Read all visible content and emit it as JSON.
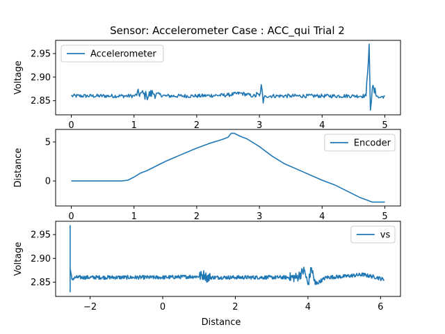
{
  "figure": {
    "title": "Sensor: Accelerometer Case : ACC_qui Trial 2"
  },
  "chart_data": [
    {
      "type": "line",
      "title": "",
      "xlabel": "",
      "ylabel": "Voltage",
      "xlim": [
        -0.25,
        5.25
      ],
      "ylim": [
        2.82,
        2.978
      ],
      "xticks": [
        0,
        1,
        2,
        3,
        4,
        5
      ],
      "yticks": [
        2.85,
        2.9,
        2.95
      ],
      "legend": {
        "placement": "upper-left"
      },
      "series": [
        {
          "name": "Accelerometer",
          "x": [
            0,
            1.0,
            1.1,
            1.2,
            1.3,
            1.5,
            2.0,
            2.5,
            2.7,
            2.9,
            3.0,
            3.03,
            3.06,
            3.1,
            3.5,
            4.0,
            4.5,
            4.7,
            4.75,
            4.77,
            4.8,
            4.9,
            5.0
          ],
          "y": [
            2.86,
            2.86,
            2.866,
            2.86,
            2.866,
            2.86,
            2.86,
            2.862,
            2.866,
            2.86,
            2.86,
            2.884,
            2.845,
            2.86,
            2.86,
            2.86,
            2.86,
            2.86,
            2.97,
            2.83,
            2.876,
            2.856,
            2.86
          ],
          "noise_amplitude": 0.004,
          "burst_regions": [
            [
              1.05,
              1.35
            ],
            [
              2.95,
              3.1
            ],
            [
              4.72,
              4.85
            ]
          ]
        }
      ]
    },
    {
      "type": "line",
      "title": "",
      "xlabel": "",
      "ylabel": "Distance",
      "xlim": [
        -0.25,
        5.25
      ],
      "ylim": [
        -3.2,
        6.6
      ],
      "xticks": [
        0,
        1,
        2,
        3,
        4,
        5
      ],
      "yticks": [
        0,
        5
      ],
      "legend": {
        "placement": "upper-right"
      },
      "series": [
        {
          "name": "Encoder",
          "x": [
            0,
            0.8,
            0.9,
            1.0,
            1.1,
            1.2,
            1.3,
            1.4,
            1.5,
            1.7,
            2.0,
            2.2,
            2.4,
            2.5,
            2.55,
            2.6,
            2.7,
            2.8,
            3.0,
            3.2,
            3.4,
            3.6,
            4.0,
            4.2,
            4.4,
            4.6,
            4.8,
            5.0
          ],
          "y": [
            0,
            0,
            0.1,
            0.5,
            1.0,
            1.3,
            1.7,
            2.1,
            2.5,
            3.2,
            4.2,
            4.8,
            5.3,
            5.6,
            6.1,
            6.1,
            5.7,
            5.4,
            4.4,
            3.2,
            2.2,
            1.5,
            0.1,
            -0.5,
            -1.3,
            -2.1,
            -2.7,
            -2.7
          ]
        }
      ]
    },
    {
      "type": "line",
      "title": "",
      "xlabel": "Distance",
      "ylabel": "Voltage",
      "xlim": [
        -2.95,
        6.55
      ],
      "ylim": [
        2.82,
        2.978
      ],
      "xticks": [
        -2,
        0,
        2,
        4,
        6
      ],
      "yticks": [
        2.85,
        2.9,
        2.95
      ],
      "legend": {
        "placement": "upper-right"
      },
      "series": [
        {
          "name": "vs",
          "x": [
            -2.55,
            -2.55,
            -2.55,
            -2.5,
            -2.4,
            -2.0,
            -1.0,
            0,
            1.0,
            1.15,
            1.2,
            2.0,
            3.0,
            3.7,
            3.9,
            4.0,
            4.1,
            4.2,
            4.5,
            5.0,
            5.5,
            5.9,
            6.1
          ],
          "y": [
            2.97,
            2.83,
            2.876,
            2.856,
            2.86,
            2.86,
            2.86,
            2.86,
            2.862,
            2.866,
            2.86,
            2.86,
            2.86,
            2.86,
            2.875,
            2.845,
            2.88,
            2.845,
            2.86,
            2.862,
            2.866,
            2.86,
            2.855
          ],
          "noise_amplitude": 0.004,
          "burst_regions": [
            [
              3.5,
              4.25
            ],
            [
              1.0,
              1.3
            ]
          ]
        }
      ]
    }
  ]
}
